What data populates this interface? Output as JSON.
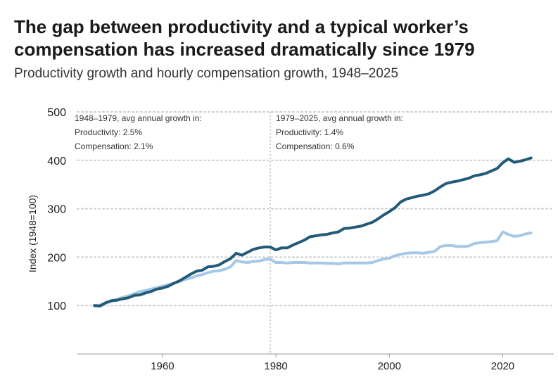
{
  "header": {
    "title_line1": "The gap between productivity and a typical worker’s",
    "title_line2": "compensation has increased dramatically since 1979",
    "subtitle": "Productivity growth and hourly compensation growth, 1948–2025"
  },
  "colors": {
    "productivity": "#235a78",
    "compensation": "#a6c8e6",
    "grid": "#cccccc",
    "divider": "#bbbbbb"
  },
  "chart_data": {
    "type": "line",
    "ylabel": "Index (1948=100)",
    "xlabel": "",
    "xlim": [
      1945,
      2029
    ],
    "ylim": [
      0,
      500
    ],
    "x_ticks": [
      1960,
      1980,
      2000,
      2020
    ],
    "y_ticks": [
      100,
      200,
      300,
      400,
      500
    ],
    "grid": "horizontal dotted",
    "divider_year": 1979,
    "annotations": [
      {
        "lines": [
          "1948–1979, avg annual growth in:",
          "Productivity: 2.5%",
          "Compensation: 2.1%"
        ]
      },
      {
        "lines": [
          "1979–2025, avg annual growth in:",
          "Productivity: 1.4%",
          "Compensation: 0.6%"
        ]
      }
    ],
    "series": [
      {
        "key": "productivity",
        "x": [
          1948,
          1949,
          1950,
          1951,
          1952,
          1953,
          1954,
          1955,
          1956,
          1957,
          1958,
          1959,
          1960,
          1961,
          1962,
          1963,
          1964,
          1965,
          1966,
          1967,
          1968,
          1969,
          1970,
          1971,
          1972,
          1973,
          1974,
          1975,
          1976,
          1977,
          1978,
          1979,
          1980,
          1981,
          1982,
          1983,
          1984,
          1985,
          1986,
          1987,
          1988,
          1989,
          1990,
          1991,
          1992,
          1993,
          1994,
          1995,
          1996,
          1997,
          1998,
          1999,
          2000,
          2001,
          2002,
          2003,
          2004,
          2005,
          2006,
          2007,
          2008,
          2009,
          2010,
          2011,
          2012,
          2013,
          2014,
          2015,
          2016,
          2017,
          2018,
          2019,
          2020,
          2021,
          2022,
          2023,
          2024,
          2025
        ],
        "values": [
          100,
          99,
          106,
          110,
          111,
          114,
          116,
          121,
          122,
          126,
          129,
          134,
          136,
          140,
          146,
          151,
          158,
          165,
          171,
          173,
          180,
          181,
          184,
          191,
          197,
          208,
          204,
          210,
          216,
          219,
          221,
          221,
          215,
          219,
          219,
          225,
          230,
          235,
          242,
          244,
          246,
          247,
          250,
          252,
          259,
          260,
          262,
          264,
          268,
          272,
          279,
          287,
          294,
          302,
          314,
          320,
          323,
          326,
          328,
          331,
          337,
          345,
          352,
          355,
          357,
          360,
          363,
          368,
          370,
          373,
          378,
          383,
          395,
          403,
          396,
          398,
          401,
          405
        ]
      },
      {
        "key": "compensation",
        "x": [
          1948,
          1949,
          1950,
          1951,
          1952,
          1953,
          1954,
          1955,
          1956,
          1957,
          1958,
          1959,
          1960,
          1961,
          1962,
          1963,
          1964,
          1965,
          1966,
          1967,
          1968,
          1969,
          1970,
          1971,
          1972,
          1973,
          1974,
          1975,
          1976,
          1977,
          1978,
          1979,
          1980,
          1981,
          1982,
          1983,
          1984,
          1985,
          1986,
          1987,
          1988,
          1989,
          1990,
          1991,
          1992,
          1993,
          1994,
          1995,
          1996,
          1997,
          1998,
          1999,
          2000,
          2001,
          2002,
          2003,
          2004,
          2005,
          2006,
          2007,
          2008,
          2009,
          2010,
          2011,
          2012,
          2013,
          2014,
          2015,
          2016,
          2017,
          2018,
          2019,
          2020,
          2021,
          2022,
          2023,
          2024,
          2025
        ],
        "values": [
          100,
          101,
          105,
          109,
          113,
          117,
          120,
          124,
          129,
          131,
          134,
          137,
          140,
          143,
          146,
          150,
          154,
          157,
          161,
          164,
          168,
          171,
          172,
          175,
          180,
          193,
          190,
          189,
          191,
          192,
          195,
          196,
          189,
          189,
          188,
          189,
          189,
          189,
          188,
          188,
          188,
          187,
          187,
          186,
          188,
          188,
          188,
          188,
          188,
          189,
          193,
          196,
          198,
          203,
          206,
          208,
          209,
          209,
          208,
          210,
          212,
          222,
          224,
          224,
          222,
          222,
          223,
          228,
          230,
          231,
          232,
          234,
          252,
          247,
          243,
          244,
          248,
          250
        ]
      }
    ]
  }
}
